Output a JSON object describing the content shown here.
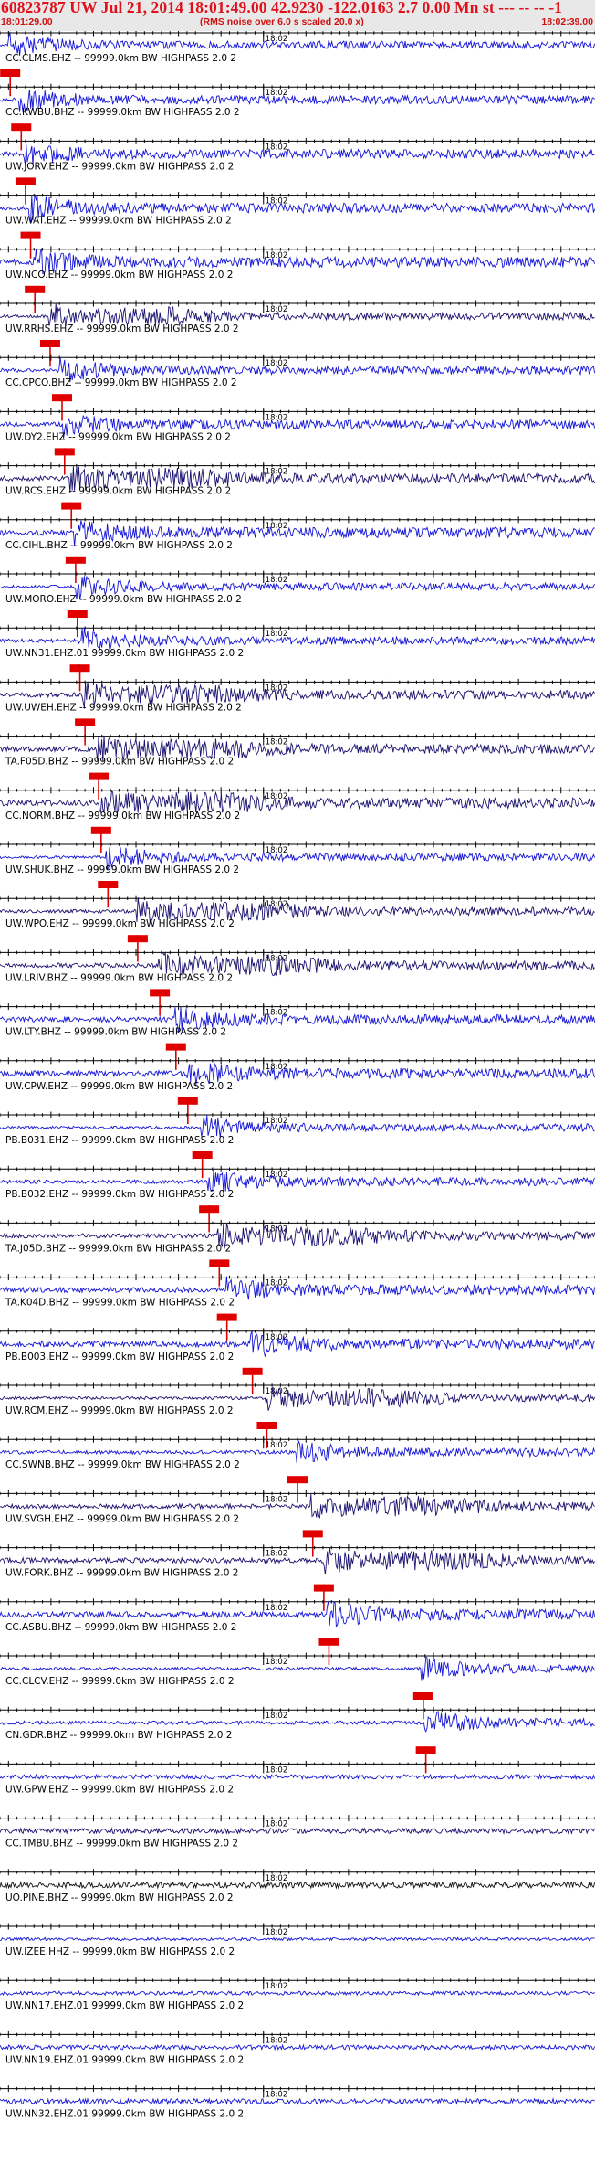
{
  "header": {
    "title": "60823787 UW Jul 21, 2014 18:01:49.00   42.9230 -122.0163  2.7 0.00 Mn st --- -- --  -1",
    "start_time": "18:01:29.00",
    "note": "(RMS noise over 6.0 s scaled 20.0 x)",
    "end_time": "18:02:39.00"
  },
  "colors": {
    "blue": "#1515d8",
    "dark": "#1c1270",
    "black": "#111111",
    "pick": "#e00000",
    "title": "#e0101a"
  },
  "chart_data": {
    "type": "line",
    "title": "60823787 UW Jul 21, 2014 18:01:49.00   42.9230 -122.0163  2.7 0.00 Mn st --- -- --  -1",
    "x_range": [
      "18:01:29.00",
      "18:02:39.00"
    ],
    "x_tick_label": "18:02",
    "series": [
      {
        "label": "CC.CLMS.EHZ -- 99999.0km BW  HIGHPASS  2.0  2",
        "pick": "18:01:30.2",
        "color": "blue"
      },
      {
        "label": "CC.KWBU.BHZ -- 99999.0km BW  HIGHPASS  2.0  2",
        "pick": "18:01:31.5",
        "color": "blue"
      },
      {
        "label": "UW.JORV.EHZ -- 99999.0km BW  HIGHPASS  2.0  2",
        "pick": "18:01:32.0",
        "color": "blue"
      },
      {
        "label": "UW.WAT.EHZ -- 99999.0km BW  HIGHPASS  2.0  2",
        "pick": "18:01:32.6",
        "color": "blue"
      },
      {
        "label": "UW.NCO.EHZ -- 99999.0km BW  HIGHPASS  2.0  2",
        "pick": "18:01:33.1",
        "color": "blue"
      },
      {
        "label": "UW.RRHS.EHZ -- 99999.0km BW  HIGHPASS  2.0  2",
        "pick": "18:01:34.9",
        "color": "dark"
      },
      {
        "label": "CC.CPCO.BHZ -- 99999.0km BW  HIGHPASS  2.0  2",
        "pick": "18:01:36.3",
        "color": "blue"
      },
      {
        "label": "UW.DY2.EHZ -- 99999.0km BW  HIGHPASS  2.0  2",
        "pick": "18:01:36.6",
        "color": "blue"
      },
      {
        "label": "UW.RCS.EHZ -- 99999.0km BW  HIGHPASS  2.0  2",
        "pick": "18:01:37.4",
        "color": "dark"
      },
      {
        "label": "CC.CIHL.BHZ -- 99999.0km BW  HIGHPASS  2.0  2",
        "pick": "18:01:37.9",
        "color": "blue"
      },
      {
        "label": "UW.MORO.EHZ -- 99999.0km BW  HIGHPASS  2.0  2",
        "pick": "18:01:38.1",
        "color": "blue"
      },
      {
        "label": "UW.NN31.EHZ.01 99999.0km BW  HIGHPASS  2.0  2",
        "pick": "18:01:38.4",
        "color": "blue"
      },
      {
        "label": "UW.UWEH.EHZ -- 99999.0km BW  HIGHPASS  2.0  2",
        "pick": "18:01:39.0",
        "color": "dark"
      },
      {
        "label": "TA.F05D.BHZ -- 99999.0km BW  HIGHPASS  2.0  2",
        "pick": "18:01:40.6",
        "color": "dark"
      },
      {
        "label": "CC.NORM.BHZ -- 99999.0km BW  HIGHPASS  2.0  2",
        "pick": "18:01:40.9",
        "color": "dark"
      },
      {
        "label": "UW.SHUK.BHZ -- 99999.0km BW  HIGHPASS  2.0  2",
        "pick": "18:01:41.7",
        "color": "blue"
      },
      {
        "label": "UW.WPO.EHZ -- 99999.0km BW  HIGHPASS  2.0  2",
        "pick": "18:01:45.2",
        "color": "dark"
      },
      {
        "label": "UW.LRIV.BHZ -- 99999.0km BW  HIGHPASS  2.0  2",
        "pick": "18:01:47.8",
        "color": "dark"
      },
      {
        "label": "UW.LTY.BHZ -- 99999.0km BW  HIGHPASS  2.0  2",
        "pick": "18:01:49.7",
        "color": "blue"
      },
      {
        "label": "UW.CPW.EHZ -- 99999.0km BW  HIGHPASS  2.0  2",
        "pick": "18:01:51.1",
        "color": "blue"
      },
      {
        "label": "PB.B031.EHZ -- 99999.0km BW  HIGHPASS  2.0  2",
        "pick": "18:01:52.8",
        "color": "blue"
      },
      {
        "label": "PB.B032.EHZ -- 99999.0km BW  HIGHPASS  2.0  2",
        "pick": "18:01:53.6",
        "color": "blue"
      },
      {
        "label": "TA.J05D.BHZ -- 99999.0km BW  HIGHPASS  2.0  2",
        "pick": "18:01:54.8",
        "color": "dark"
      },
      {
        "label": "TA.K04D.BHZ -- 99999.0km BW  HIGHPASS  2.0  2",
        "pick": "18:01:55.7",
        "color": "blue"
      },
      {
        "label": "PB.B003.EHZ -- 99999.0km BW  HIGHPASS  2.0  2",
        "pick": "18:01:58.7",
        "color": "blue"
      },
      {
        "label": "UW.RCM.EHZ -- 99999.0km BW  HIGHPASS  2.0  2",
        "pick": "18:02:00.4",
        "color": "dark"
      },
      {
        "label": "CC.SWNB.BHZ -- 99999.0km BW  HIGHPASS  2.0  2",
        "pick": "18:02:04.0",
        "color": "blue"
      },
      {
        "label": "UW.SVGH.EHZ -- 99999.0km BW  HIGHPASS  2.0  2",
        "pick": "18:02:05.8",
        "color": "dark"
      },
      {
        "label": "UW.FORK.BHZ -- 99999.0km BW  HIGHPASS  2.0  2",
        "pick": "18:02:07.1",
        "color": "dark"
      },
      {
        "label": "CC.ASBU.BHZ -- 99999.0km BW  HIGHPASS  2.0  2",
        "pick": "18:02:07.7",
        "color": "blue"
      },
      {
        "label": "CC.CLCV.EHZ -- 99999.0km BW  HIGHPASS  2.0  2",
        "pick": "18:02:18.8",
        "color": "blue"
      },
      {
        "label": "CN.GDR.BHZ -- 99999.0km BW  HIGHPASS  2.0  2",
        "pick": "18:02:19.1",
        "color": "blue"
      },
      {
        "label": "UW.GPW.EHZ -- 99999.0km BW  HIGHPASS  2.0  2",
        "pick": null,
        "color": "blue"
      },
      {
        "label": "CC.TMBU.BHZ -- 99999.0km BW  HIGHPASS  2.0  2",
        "pick": null,
        "color": "dark"
      },
      {
        "label": "UO.PINE.BHZ -- 99999.0km BW  HIGHPASS  2.0  2",
        "pick": null,
        "color": "black"
      },
      {
        "label": "UW.IZEE.HHZ -- 99999.0km BW  HIGHPASS  2.0  2",
        "pick": null,
        "color": "blue"
      },
      {
        "label": "UW.NN17.EHZ.01 99999.0km BW  HIGHPASS  2.0  2",
        "pick": null,
        "color": "blue"
      },
      {
        "label": "UW.NN19.EHZ.01 99999.0km BW  HIGHPASS  2.0  2",
        "pick": null,
        "color": "blue"
      },
      {
        "label": "UW.NN32.EHZ.01 99999.0km BW  HIGHPASS  2.0  2",
        "pick": null,
        "color": "blue"
      }
    ]
  }
}
